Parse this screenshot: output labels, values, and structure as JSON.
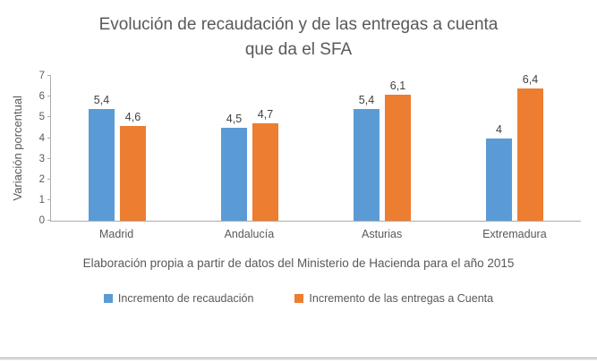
{
  "chart_data": {
    "type": "bar",
    "title": "Evolución de recaudación y de las entregas a cuenta que da el SFA",
    "categories": [
      "Madrid",
      "Andalucía",
      "Asturias",
      "Extremadura"
    ],
    "series": [
      {
        "name": "Incremento de recaudación",
        "values": [
          5.4,
          4.5,
          5.4,
          4
        ],
        "labels": [
          "5,4",
          "4,5",
          "5,4",
          "4"
        ],
        "color": "#5B9BD5"
      },
      {
        "name": "Incremento de las entregas a Cuenta",
        "values": [
          4.6,
          4.7,
          6.1,
          6.4
        ],
        "labels": [
          "4,6",
          "4,7",
          "6,1",
          "6,4"
        ],
        "color": "#ED7D31"
      }
    ],
    "ylabel": "Variación porcentual",
    "xlabel": "",
    "ylim": [
      0,
      7
    ],
    "yticks": [
      0,
      1,
      2,
      3,
      4,
      5,
      6,
      7
    ],
    "grid": false,
    "legend_position": "bottom",
    "caption": "Elaboración propia a partir de datos del Ministerio de Hacienda para el año 2015"
  }
}
